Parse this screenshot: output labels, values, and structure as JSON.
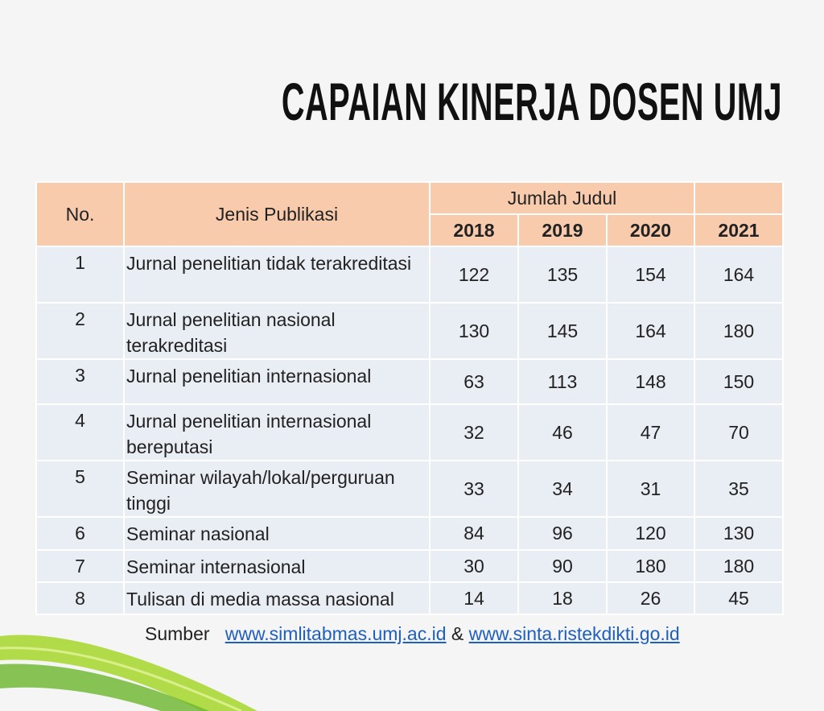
{
  "title": "CAPAIAN KINERJA DOSEN UMJ",
  "table": {
    "headers": {
      "no": "No.",
      "jenis": "Jenis Publikasi",
      "group": "Jumlah Judul",
      "years": [
        2018,
        2019,
        2020,
        2021
      ]
    },
    "rows": [
      [
        1,
        "Jurnal penelitian tidak terakreditasi",
        122,
        135,
        154,
        164
      ],
      [
        2,
        "Jurnal penelitian nasional terakreditasi",
        130,
        145,
        164,
        180
      ],
      [
        3,
        "Jurnal penelitian internasional",
        63,
        113,
        148,
        150
      ],
      [
        4,
        "Jurnal penelitian internasional bereputasi",
        32,
        46,
        47,
        70
      ],
      [
        5,
        "Seminar wilayah/lokal/perguruan tinggi",
        33,
        34,
        31,
        35
      ],
      [
        6,
        "Seminar nasional",
        84,
        96,
        120,
        130
      ],
      [
        7,
        "Seminar internasional",
        30,
        90,
        180,
        180
      ],
      [
        8,
        "Tulisan di media massa nasional",
        14,
        18,
        26,
        45
      ]
    ]
  },
  "source": {
    "label": "Sumber",
    "links": [
      "www.simlitabmas.umj.ac.id",
      "www.sinta.ristekdikti.go.id"
    ],
    "separator": "&"
  }
}
